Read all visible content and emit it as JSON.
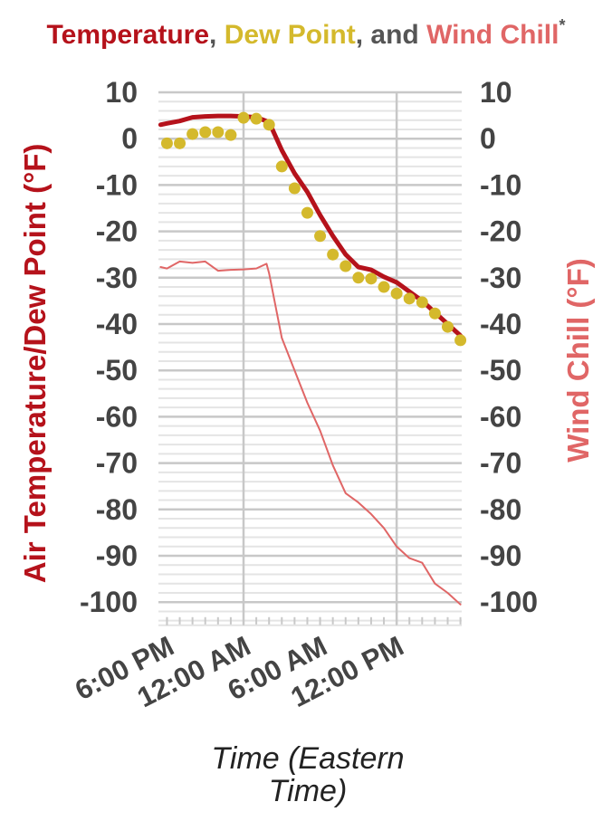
{
  "chart_data": {
    "type": "line",
    "title": [
      {
        "text": "Temperature",
        "color": "#b5121b"
      },
      {
        "text": ", ",
        "color": "#555555"
      },
      {
        "text": "Dew Point",
        "color": "#d4b92c"
      },
      {
        "text": ", and ",
        "color": "#555555"
      },
      {
        "text": "Wind Chill",
        "color": "#e06666"
      },
      {
        "text": "*",
        "color": "#555555",
        "superscript": true
      }
    ],
    "ylabel": "Air Temperature/Dew Point (°F)",
    "ylabel_color": "#b5121b",
    "y2label": "Wind Chill (°F)",
    "y2label_color": "#e06666",
    "xlabel": "Time (Eastern Time)",
    "xlim": [
      -6.67,
      17.1
    ],
    "xticks": [
      {
        "value": -6,
        "label": "6:00 PM"
      },
      {
        "value": 0,
        "label": "12:00 AM"
      },
      {
        "value": 6,
        "label": "6:00 AM"
      },
      {
        "value": 12,
        "label": "12:00 PM"
      }
    ],
    "xgrid_at": [
      0,
      12
    ],
    "ylim": [
      -105,
      10
    ],
    "yticks": [
      10,
      0,
      -10,
      -20,
      -30,
      -40,
      -50,
      -60,
      -70,
      -80,
      -90,
      -100
    ],
    "y2lim": [
      -105,
      10
    ],
    "y2ticks": [
      10,
      0,
      -10,
      -20,
      -30,
      -40,
      -50,
      -60,
      -70,
      -80,
      -90,
      -100
    ],
    "grid": true,
    "minor_grid": true,
    "series": [
      {
        "name": "Temperature",
        "color": "#b5121b",
        "style": "thick-line",
        "x": [
          -6.5,
          -6,
          -5,
          -4,
          -3,
          -2,
          -1,
          0,
          1,
          2,
          3,
          4,
          5,
          6,
          7,
          8,
          9,
          10,
          11,
          12,
          13,
          14,
          15,
          16,
          17
        ],
        "values": [
          3,
          3.3,
          3.8,
          4.6,
          4.8,
          4.9,
          4.9,
          4.8,
          4.6,
          3.6,
          -2.5,
          -7.5,
          -11.5,
          -16.5,
          -21,
          -25,
          -27.7,
          -28.3,
          -29.8,
          -31,
          -33,
          -35,
          -37.5,
          -40,
          -42.5
        ]
      },
      {
        "name": "Dew Point",
        "color": "#d4b92c",
        "style": "dots",
        "x": [
          -6,
          -5,
          -4,
          -3,
          -2,
          -1,
          0,
          1,
          2,
          3,
          4,
          5,
          6,
          7,
          8,
          9,
          10,
          11,
          12,
          13,
          14,
          15,
          16,
          17
        ],
        "values": [
          -1,
          -1,
          1,
          1.4,
          1.4,
          0.8,
          4.5,
          4.3,
          3,
          -6,
          -10.7,
          -16,
          -21,
          -25,
          -27.5,
          -30,
          -30.2,
          -32,
          -33.4,
          -34.5,
          -35.3,
          -37.7,
          -40.6,
          -43.5
        ]
      },
      {
        "name": "Wind Chill",
        "color": "#e06666",
        "style": "thin-line",
        "axis": "y2",
        "x": [
          -6.5,
          -6,
          -5,
          -4,
          -3,
          -2,
          -1,
          0,
          1,
          1.8,
          2,
          3,
          4,
          5,
          6,
          7,
          8,
          9,
          10,
          11,
          12,
          13,
          14,
          15,
          16,
          17
        ],
        "values": [
          -27.7,
          -28,
          -26.5,
          -26.8,
          -26.5,
          -28.5,
          -28.3,
          -28.2,
          -28,
          -27,
          -29,
          -43,
          -50,
          -57,
          -63,
          -70.5,
          -76.5,
          -78.5,
          -81,
          -84,
          -88,
          -90.5,
          -91.5,
          -96,
          -98,
          -100.5
        ]
      }
    ]
  }
}
